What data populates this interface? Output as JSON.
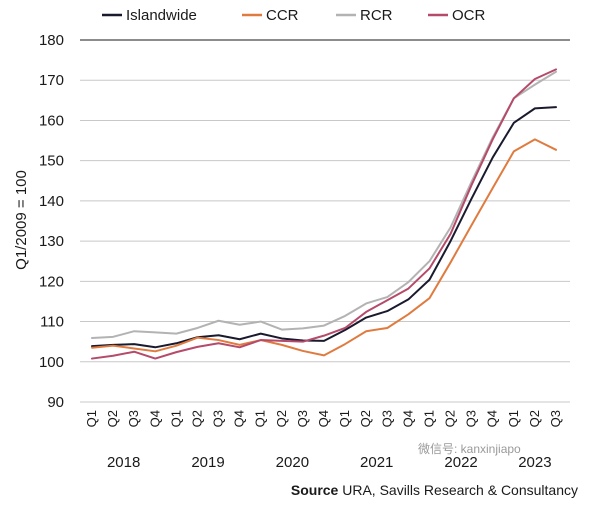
{
  "chart_data": {
    "type": "line",
    "ylabel": "Q1/2009 = 100",
    "ylim": [
      90,
      180
    ],
    "yticks": [
      90,
      100,
      110,
      120,
      130,
      140,
      150,
      160,
      170,
      180
    ],
    "grid": true,
    "legend_position": "top",
    "x": [
      "Q1",
      "Q2",
      "Q3",
      "Q4",
      "Q1",
      "Q2",
      "Q3",
      "Q4",
      "Q1",
      "Q2",
      "Q3",
      "Q4",
      "Q1",
      "Q2",
      "Q3",
      "Q4",
      "Q1",
      "Q2",
      "Q3",
      "Q4",
      "Q1",
      "Q2",
      "Q3"
    ],
    "year_labels": [
      {
        "label": "2018",
        "start": 0,
        "end": 3
      },
      {
        "label": "2019",
        "start": 4,
        "end": 7
      },
      {
        "label": "2020",
        "start": 8,
        "end": 11
      },
      {
        "label": "2021",
        "start": 12,
        "end": 15
      },
      {
        "label": "2022",
        "start": 16,
        "end": 19
      },
      {
        "label": "2023",
        "start": 20,
        "end": 22
      }
    ],
    "series": [
      {
        "name": "Islandwide",
        "color": "#1a1a2e",
        "values": [
          103.9,
          104.2,
          104.4,
          103.6,
          104.6,
          106.1,
          106.6,
          105.6,
          107.0,
          105.8,
          105.3,
          105.2,
          107.9,
          111.0,
          112.6,
          115.5,
          120.4,
          130.0,
          140.6,
          150.8,
          159.4,
          163.0,
          163.3
        ]
      },
      {
        "name": "CCR",
        "color": "#e07b3f",
        "values": [
          103.5,
          104.0,
          103.3,
          102.6,
          104.0,
          106.0,
          105.4,
          104.2,
          105.4,
          104.2,
          102.7,
          101.6,
          104.4,
          107.6,
          108.4,
          111.8,
          115.8,
          124.7,
          134.0,
          143.2,
          152.3,
          155.3,
          152.7
        ]
      },
      {
        "name": "RCR",
        "color": "#b3b3b3",
        "values": [
          105.9,
          106.2,
          107.6,
          107.3,
          107.0,
          108.4,
          110.2,
          109.2,
          110.0,
          108.0,
          108.3,
          109.0,
          111.4,
          114.5,
          116.1,
          119.8,
          125.0,
          133.4,
          144.8,
          155.8,
          165.5,
          168.9,
          172.1
        ]
      },
      {
        "name": "OCR",
        "color": "#b54a6a",
        "values": [
          100.8,
          101.5,
          102.5,
          100.8,
          102.4,
          103.7,
          104.6,
          103.6,
          105.4,
          105.2,
          105.0,
          106.5,
          108.4,
          112.4,
          115.3,
          118.2,
          123.2,
          131.8,
          144.0,
          155.3,
          165.5,
          170.3,
          172.7
        ]
      }
    ]
  },
  "source_label": "Source",
  "source_text": "URA, Savills Research & Consultancy",
  "watermark": "微信号: kanxinjiapo"
}
